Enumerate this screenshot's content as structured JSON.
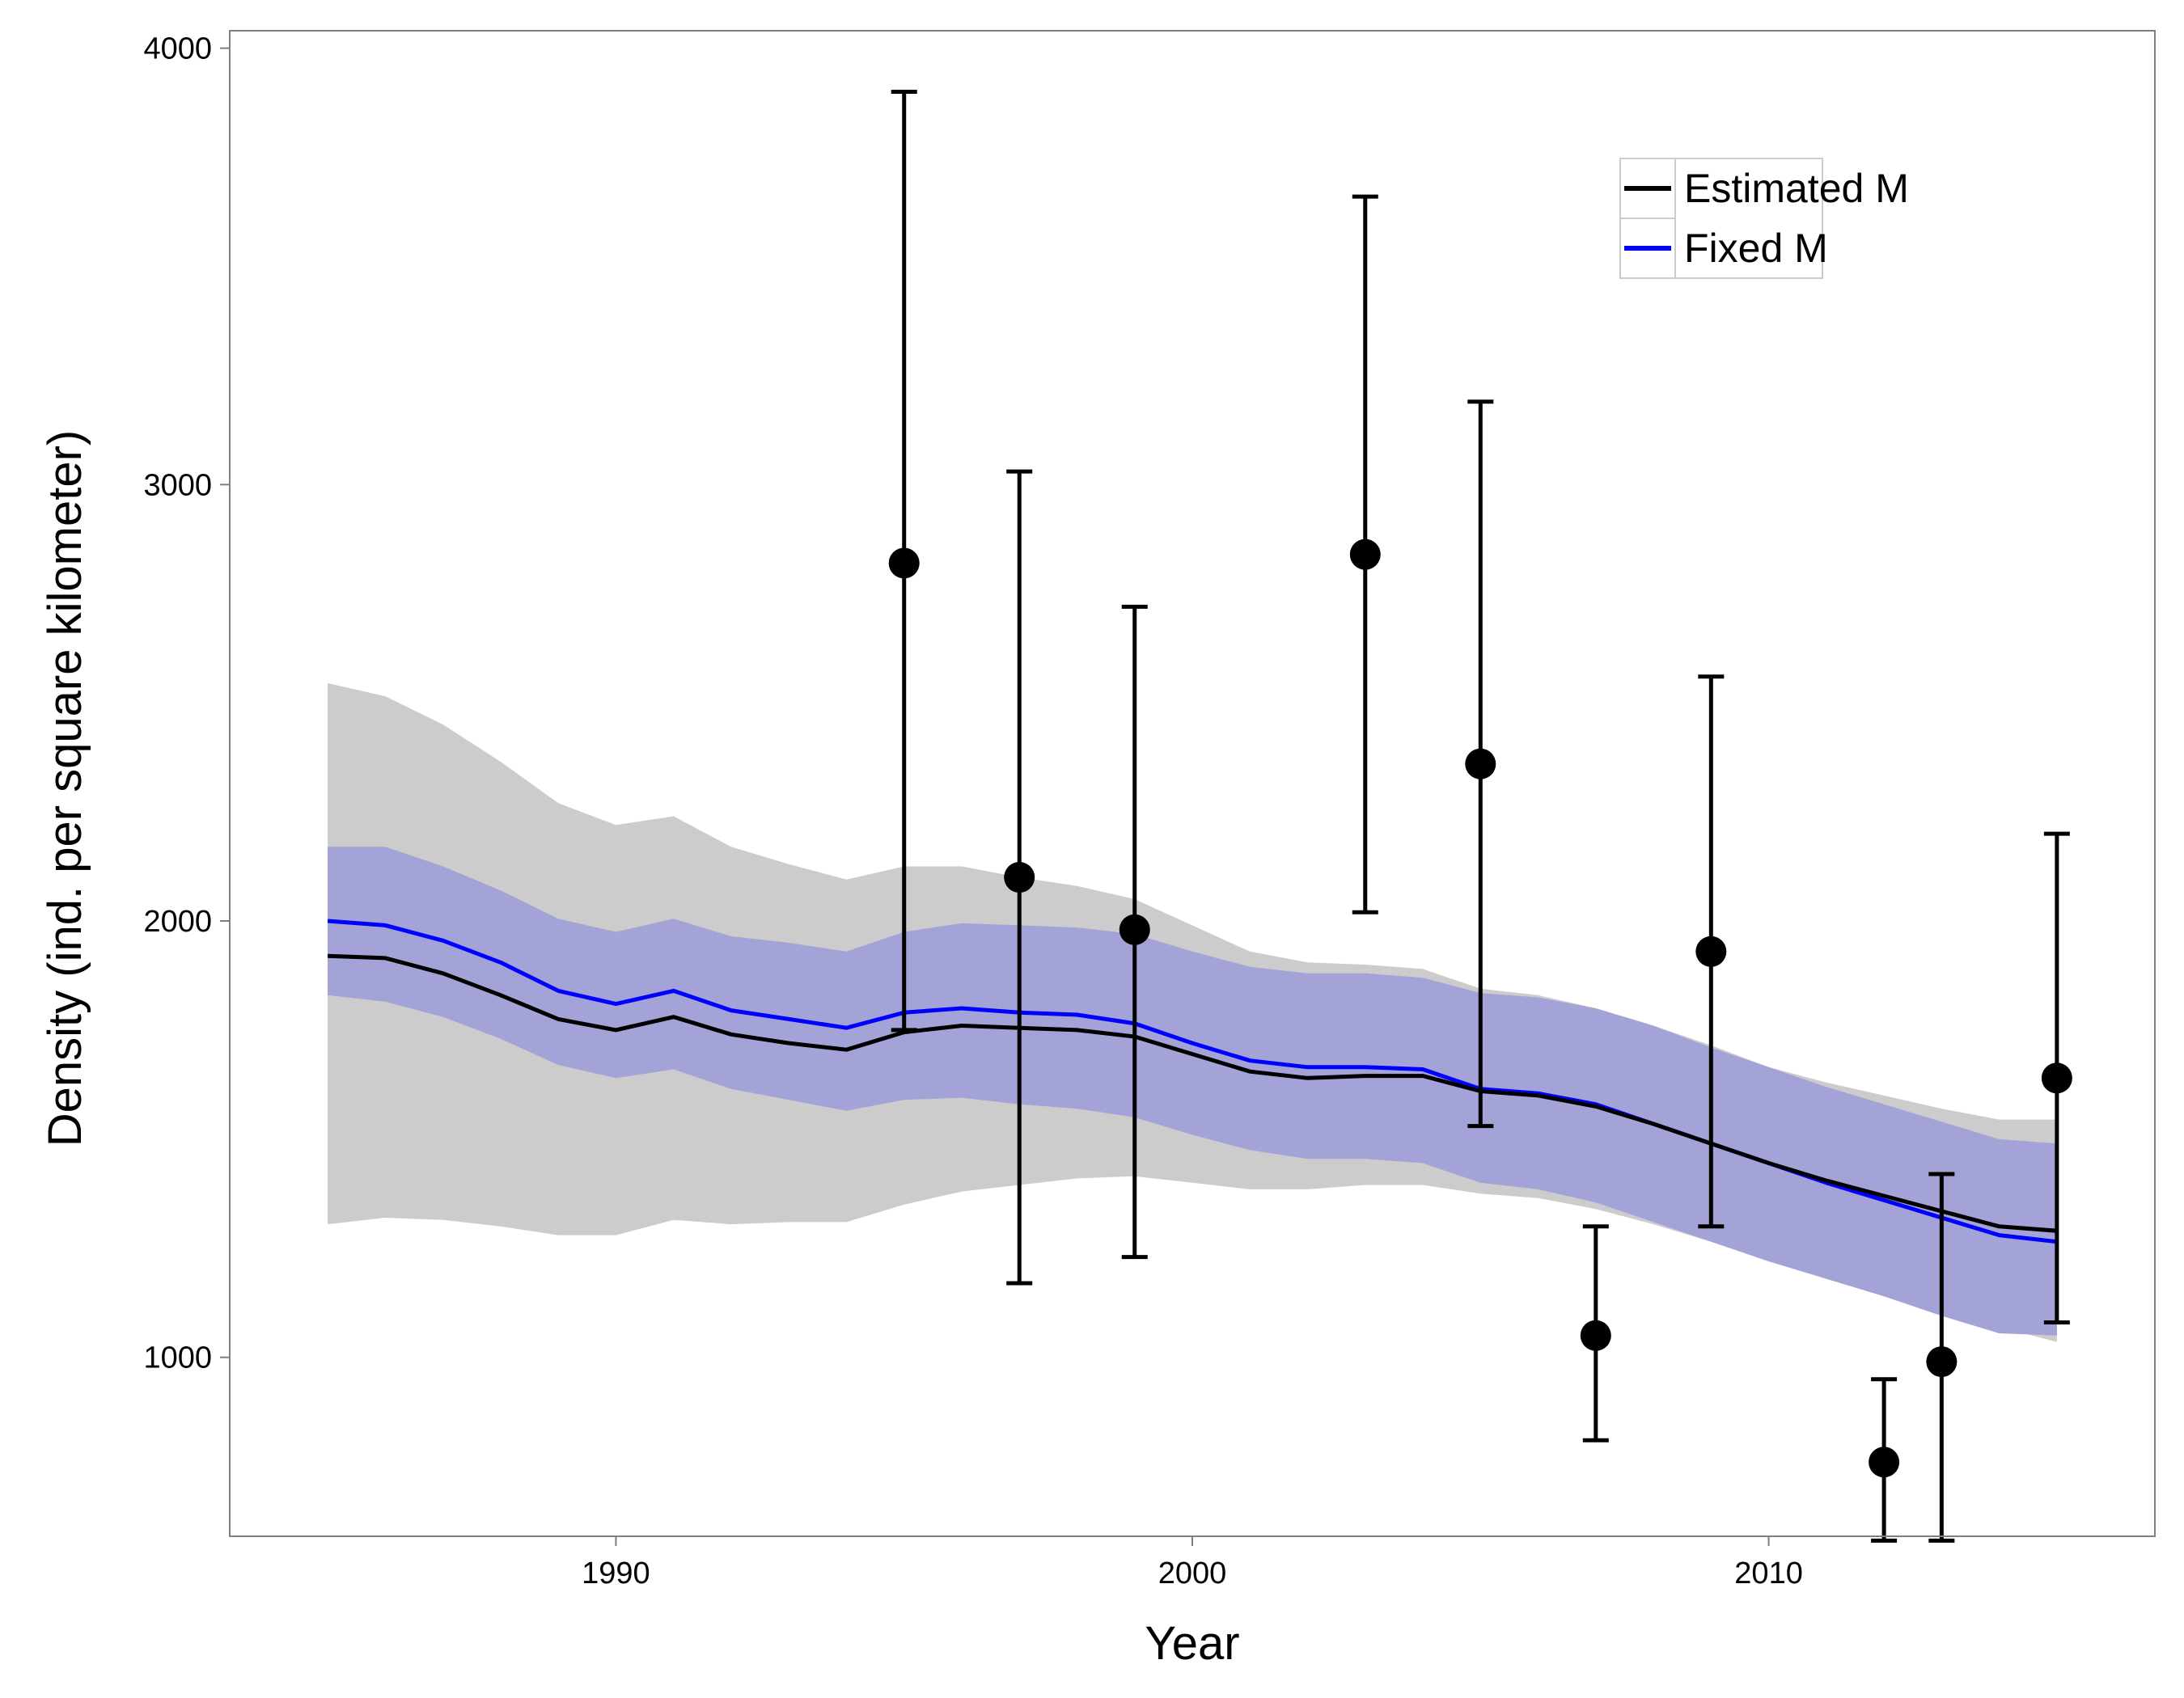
{
  "chart_data": {
    "type": "line",
    "title": "",
    "xlabel": "Year",
    "ylabel": "Density (ind. per square kilometer)",
    "xlim": [
      1983.3,
      2016.7
    ],
    "ylim": [
      590,
      4040
    ],
    "x_ticks": [
      1990,
      2000,
      2010
    ],
    "y_ticks": [
      1000,
      2000,
      3000,
      4000
    ],
    "grid": false,
    "legend_position": "top-right",
    "colors": {
      "estimated": "#000000",
      "fixed": "#0000ff",
      "band_estimated": "#cccccc",
      "band_fixed": "#a3a3d8",
      "points": "#000000"
    },
    "x": [
      1985,
      1986,
      1987,
      1988,
      1989,
      1990,
      1991,
      1992,
      1993,
      1994,
      1995,
      1996,
      1997,
      1998,
      1999,
      2000,
      2001,
      2002,
      2003,
      2004,
      2005,
      2006,
      2007,
      2008,
      2009,
      2010,
      2011,
      2012,
      2013,
      2014,
      2015
    ],
    "series": [
      {
        "name": "Estimated M",
        "values": [
          1920,
          1915,
          1880,
          1830,
          1775,
          1750,
          1780,
          1740,
          1720,
          1705,
          1745,
          1760,
          1755,
          1750,
          1735,
          1695,
          1655,
          1640,
          1645,
          1645,
          1610,
          1600,
          1575,
          1535,
          1490,
          1445,
          1405,
          1370,
          1335,
          1300,
          1290
        ],
        "band_lower": [
          1305,
          1320,
          1315,
          1300,
          1280,
          1280,
          1315,
          1305,
          1310,
          1310,
          1350,
          1380,
          1395,
          1410,
          1415,
          1400,
          1385,
          1385,
          1395,
          1395,
          1375,
          1365,
          1340,
          1305,
          1265,
          1225,
          1185,
          1150,
          1110,
          1070,
          1035
        ],
        "band_upper": [
          2545,
          2515,
          2450,
          2365,
          2270,
          2220,
          2240,
          2170,
          2130,
          2095,
          2125,
          2125,
          2100,
          2080,
          2050,
          1990,
          1930,
          1905,
          1900,
          1890,
          1845,
          1830,
          1800,
          1760,
          1715,
          1665,
          1630,
          1600,
          1570,
          1545,
          1545
        ]
      },
      {
        "name": "Fixed M",
        "values": [
          2000,
          1990,
          1955,
          1905,
          1840,
          1810,
          1840,
          1795,
          1775,
          1755,
          1790,
          1800,
          1790,
          1785,
          1765,
          1720,
          1680,
          1665,
          1665,
          1660,
          1615,
          1605,
          1580,
          1535,
          1490,
          1445,
          1400,
          1360,
          1320,
          1280,
          1265
        ],
        "band_lower": [
          1830,
          1815,
          1780,
          1730,
          1670,
          1640,
          1660,
          1615,
          1590,
          1565,
          1590,
          1595,
          1580,
          1570,
          1550,
          1510,
          1475,
          1455,
          1455,
          1445,
          1400,
          1385,
          1355,
          1310,
          1265,
          1220,
          1180,
          1140,
          1095,
          1055,
          1050
        ],
        "band_upper": [
          2170,
          2170,
          2125,
          2070,
          2005,
          1975,
          2005,
          1965,
          1950,
          1930,
          1975,
          1995,
          1990,
          1985,
          1970,
          1930,
          1895,
          1880,
          1880,
          1870,
          1835,
          1825,
          1800,
          1760,
          1710,
          1665,
          1620,
          1580,
          1540,
          1500,
          1490
        ]
      }
    ],
    "points": [
      {
        "x": 1995,
        "y": 2820,
        "lower": 1750,
        "upper": 3900
      },
      {
        "x": 1997,
        "y": 2100,
        "lower": 1170,
        "upper": 3030
      },
      {
        "x": 1999,
        "y": 1980,
        "lower": 1230,
        "upper": 2720
      },
      {
        "x": 2003,
        "y": 2840,
        "lower": 2020,
        "upper": 3660
      },
      {
        "x": 2005,
        "y": 2360,
        "lower": 1530,
        "upper": 3190
      },
      {
        "x": 2007,
        "y": 1050,
        "lower": 810,
        "upper": 1300
      },
      {
        "x": 2009,
        "y": 1930,
        "lower": 1300,
        "upper": 2560
      },
      {
        "x": 2012,
        "y": 760,
        "lower": 580,
        "upper": 950
      },
      {
        "x": 2013,
        "y": 990,
        "lower": 580,
        "upper": 1420
      },
      {
        "x": 2015,
        "y": 1640,
        "lower": 1080,
        "upper": 2200
      }
    ]
  }
}
